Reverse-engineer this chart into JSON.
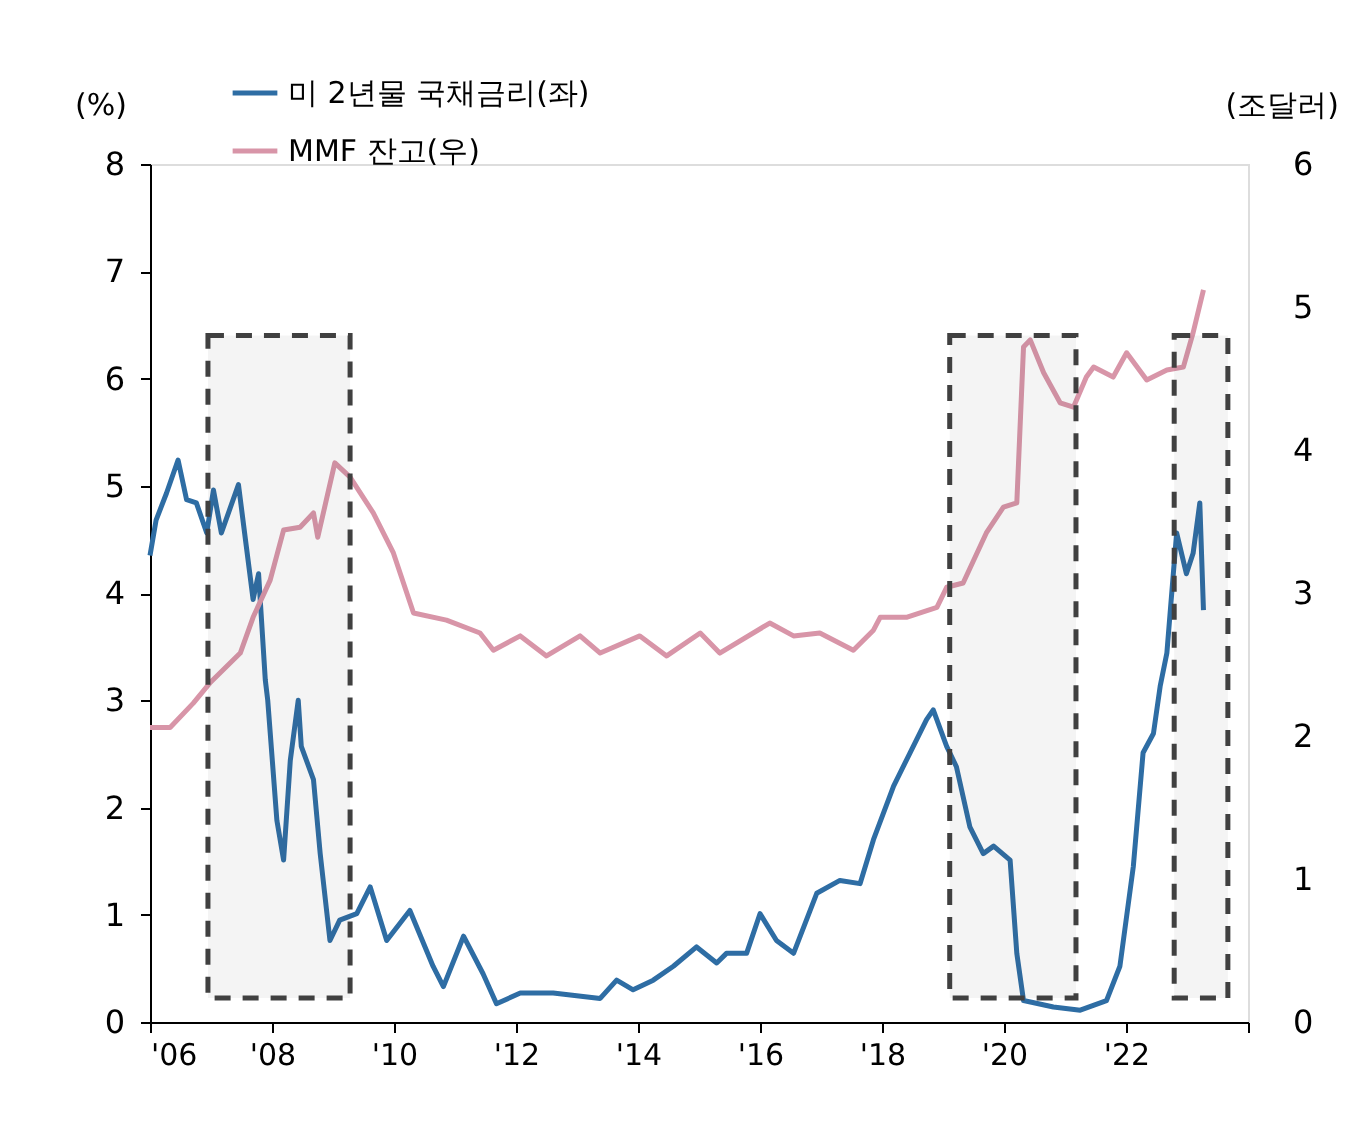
{
  "chart_data": {
    "type": "line",
    "ylabel": "(%)",
    "y2label": "(조달러)",
    "xlim": [
      2006,
      2024
    ],
    "xticks": [
      {
        "value": 2006,
        "label": "'06"
      },
      {
        "value": 2008,
        "label": "'08"
      },
      {
        "value": 2010,
        "label": "'10"
      },
      {
        "value": 2012,
        "label": "'12"
      },
      {
        "value": 2014,
        "label": "'14"
      },
      {
        "value": 2016,
        "label": "'16"
      },
      {
        "value": 2018,
        "label": "'18"
      },
      {
        "value": 2020,
        "label": "'20"
      },
      {
        "value": 2022,
        "label": "'22"
      },
      {
        "value": 2024,
        "label": null
      }
    ],
    "ylim": [
      0,
      8
    ],
    "yticks": [
      0,
      1,
      2,
      3,
      4,
      5,
      6,
      7,
      8
    ],
    "y2lim": [
      0,
      6
    ],
    "y2ticks": [
      0,
      1,
      2,
      3,
      4,
      5,
      6
    ],
    "legend": "top left",
    "grid": false,
    "line_style": "solid",
    "marker": "none",
    "bands": [
      {
        "axis": "x",
        "from": 2006.95,
        "to": 2009.28,
        "color": "#404040"
      },
      {
        "axis": "x",
        "from": 2019.11,
        "to": 2021.18,
        "color": "#404040"
      },
      {
        "axis": "x",
        "from": 2022.79,
        "to": 2023.67,
        "color": "#404040"
      }
    ],
    "series": [
      {
        "name": "미 2년물 국채금리(좌)",
        "color": "#2e6da4",
        "axis": "y",
        "x": [
          2006.0,
          2006.1,
          2006.27,
          2006.46,
          2006.6,
          2006.76,
          2006.93,
          2007.04,
          2007.17,
          2007.45,
          2007.58,
          2007.69,
          2007.78,
          2007.89,
          2007.93,
          2008.08,
          2008.19,
          2008.3,
          2008.43,
          2008.48,
          2008.68,
          2008.79,
          2008.95,
          2009.11,
          2009.39,
          2009.61,
          2009.88,
          2010.26,
          2010.64,
          2010.81,
          2011.14,
          2011.46,
          2011.68,
          2012.07,
          2012.61,
          2013.38,
          2013.65,
          2013.92,
          2014.25,
          2014.58,
          2014.96,
          2015.29,
          2015.45,
          2015.78,
          2016.0,
          2016.27,
          2016.55,
          2016.93,
          2017.31,
          2017.64,
          2017.86,
          2018.19,
          2018.46,
          2018.73,
          2018.84,
          2019.06,
          2019.22,
          2019.44,
          2019.66,
          2019.83,
          2020.1,
          2020.21,
          2020.32,
          2020.81,
          2021.25,
          2021.68,
          2021.9,
          2022.12,
          2022.28,
          2022.45,
          2022.56,
          2022.67,
          2022.83,
          2022.99,
          2023.1,
          2023.21,
          2023.27
        ],
        "values": [
          4.35,
          4.68,
          4.93,
          5.24,
          4.87,
          4.84,
          4.56,
          4.96,
          4.56,
          5.01,
          4.43,
          3.94,
          4.18,
          3.19,
          3.0,
          1.88,
          1.51,
          2.44,
          3.0,
          2.57,
          2.26,
          1.57,
          0.76,
          0.95,
          1.01,
          1.26,
          0.76,
          1.04,
          0.52,
          0.33,
          0.8,
          0.45,
          0.17,
          0.27,
          0.27,
          0.22,
          0.39,
          0.3,
          0.39,
          0.52,
          0.7,
          0.55,
          0.64,
          0.64,
          1.01,
          0.76,
          0.64,
          1.2,
          1.32,
          1.29,
          1.7,
          2.2,
          2.51,
          2.82,
          2.91,
          2.57,
          2.38,
          1.82,
          1.57,
          1.64,
          1.51,
          0.64,
          0.2,
          0.14,
          0.11,
          0.2,
          0.52,
          1.45,
          2.51,
          2.69,
          3.13,
          3.44,
          4.56,
          4.18,
          4.37,
          4.84,
          3.84
        ]
      },
      {
        "name": "MMF 잔고(우)",
        "color": "#d895a8",
        "axis": "y2",
        "x": [
          2006.0,
          2006.33,
          2006.71,
          2006.98,
          2007.48,
          2007.69,
          2007.97,
          2008.19,
          2008.46,
          2008.68,
          2008.75,
          2009.03,
          2009.28,
          2009.66,
          2009.99,
          2010.32,
          2010.86,
          2011.41,
          2011.63,
          2012.07,
          2012.5,
          2013.05,
          2013.38,
          2014.03,
          2014.47,
          2015.02,
          2015.34,
          2016.16,
          2016.55,
          2016.98,
          2017.53,
          2017.86,
          2017.97,
          2018.4,
          2018.9,
          2019.06,
          2019.33,
          2019.71,
          2019.99,
          2020.21,
          2020.32,
          2020.43,
          2020.65,
          2020.92,
          2021.14,
          2021.35,
          2021.47,
          2021.79,
          2022.01,
          2022.34,
          2022.67,
          2022.94,
          2023.1,
          2023.27
        ],
        "values": [
          2.06,
          2.06,
          2.23,
          2.37,
          2.58,
          2.83,
          3.09,
          3.44,
          3.46,
          3.56,
          3.39,
          3.91,
          3.81,
          3.56,
          3.28,
          2.86,
          2.81,
          2.72,
          2.6,
          2.7,
          2.56,
          2.7,
          2.58,
          2.7,
          2.56,
          2.72,
          2.58,
          2.79,
          2.7,
          2.72,
          2.6,
          2.74,
          2.83,
          2.83,
          2.9,
          3.04,
          3.07,
          3.42,
          3.6,
          3.63,
          4.72,
          4.77,
          4.54,
          4.33,
          4.3,
          4.51,
          4.58,
          4.51,
          4.68,
          4.49,
          4.56,
          4.58,
          4.82,
          5.12
        ]
      }
    ]
  }
}
